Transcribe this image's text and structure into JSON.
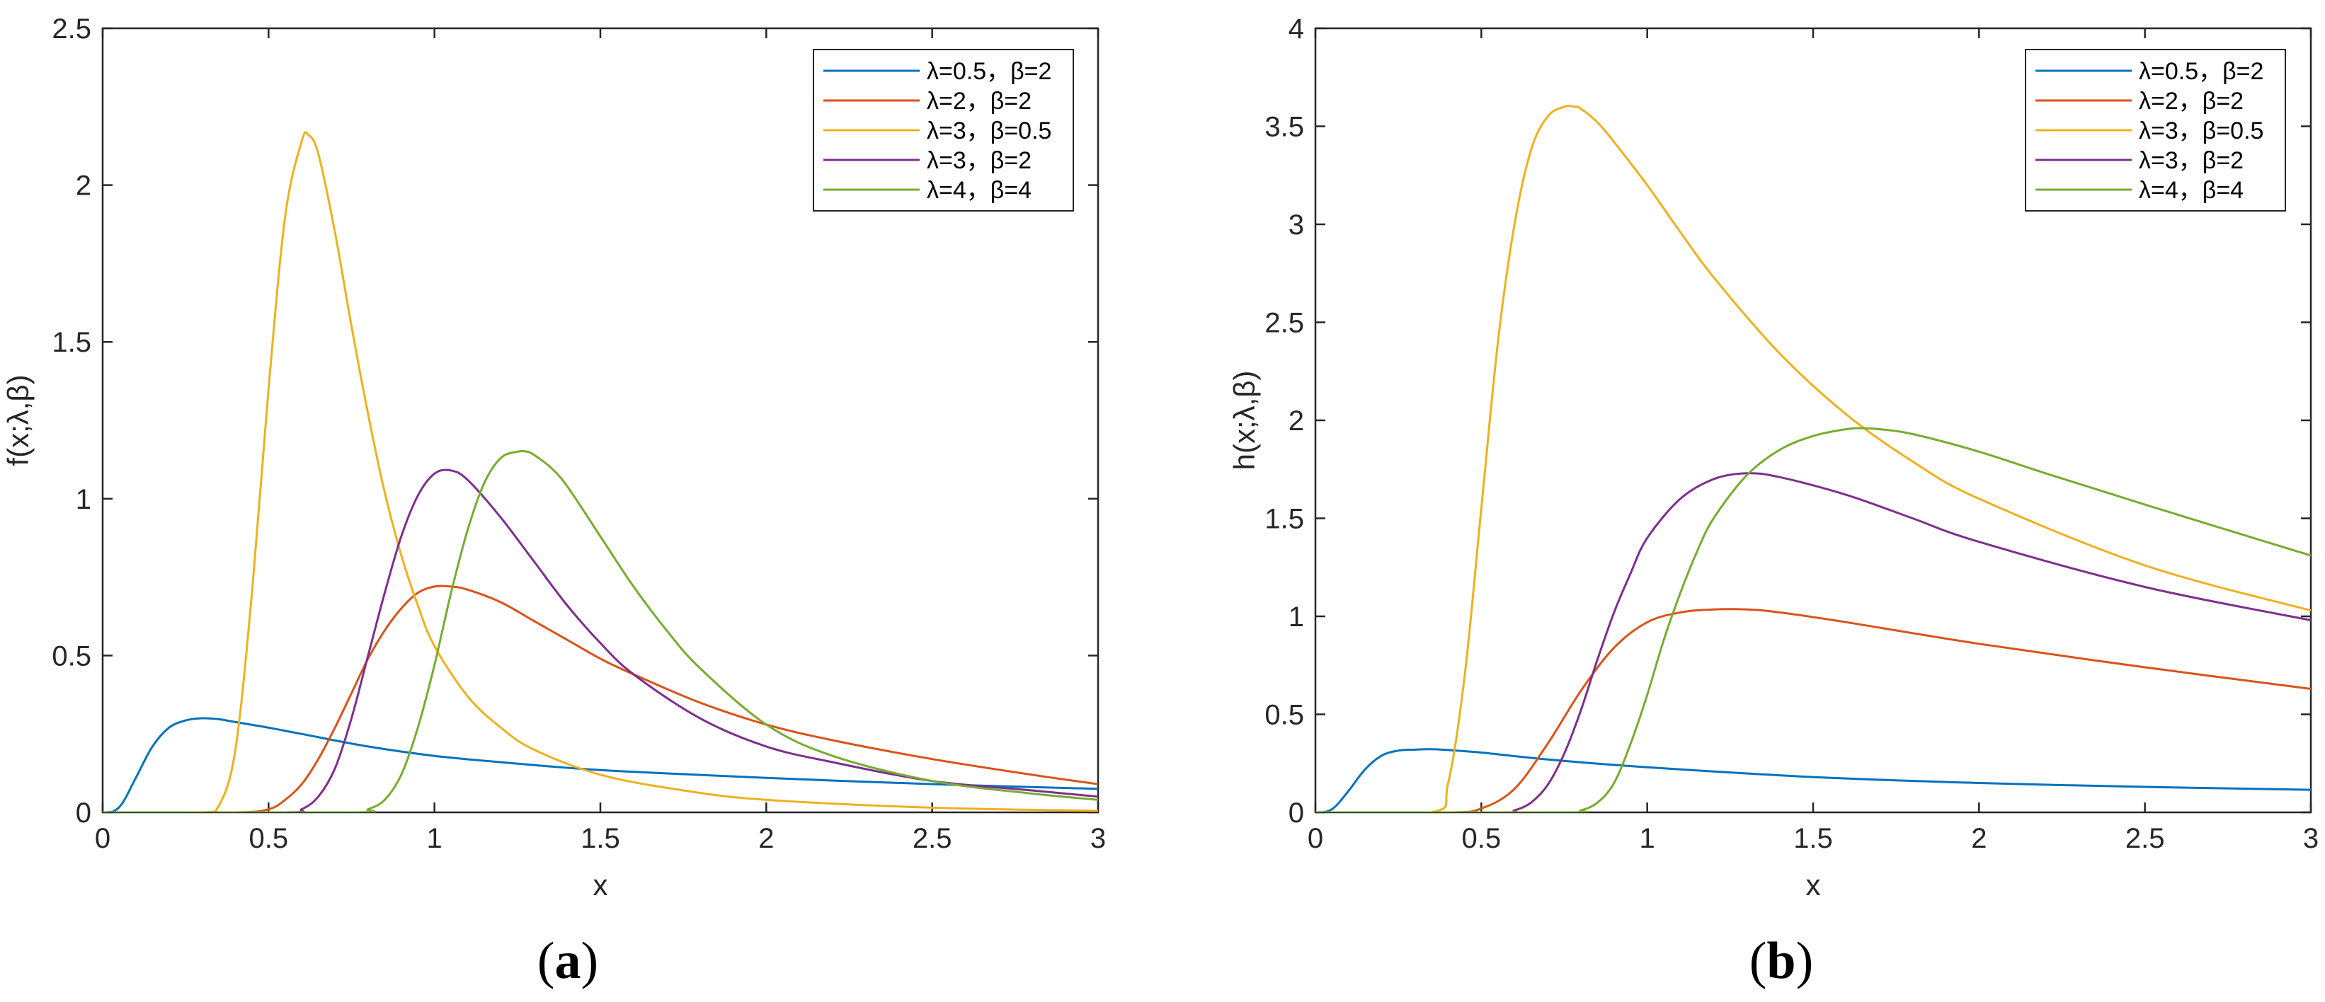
{
  "chart_data": [
    {
      "type": "line",
      "panel_label": "a",
      "xlabel": "x",
      "ylabel": "f(x;λ,β)",
      "xlim": [
        0,
        3
      ],
      "ylim": [
        0,
        2.5
      ],
      "xticks": [
        "0",
        "0.5",
        "1",
        "1.5",
        "2",
        "2.5",
        "3"
      ],
      "yticks": [
        "0",
        "0.5",
        "1",
        "1.5",
        "2",
        "2.5"
      ],
      "legend_position": "top-right",
      "grid": false,
      "series": [
        {
          "name": "λ=0.5，β=2",
          "color": "#0072BD",
          "x": [
            0,
            0.03,
            0.06,
            0.1,
            0.15,
            0.2,
            0.25,
            0.3,
            0.35,
            0.4,
            0.5,
            0.6,
            0.8,
            1.0,
            1.2,
            1.5,
            2.0,
            2.5,
            3.0
          ],
          "y": [
            0,
            0.002,
            0.03,
            0.11,
            0.21,
            0.27,
            0.293,
            0.3,
            0.297,
            0.288,
            0.27,
            0.25,
            0.21,
            0.18,
            0.16,
            0.135,
            0.11,
            0.09,
            0.075
          ]
        },
        {
          "name": "λ=2，β=2",
          "color": "#D95319",
          "x": [
            0,
            0.4,
            0.5,
            0.55,
            0.6,
            0.65,
            0.7,
            0.75,
            0.8,
            0.85,
            0.9,
            0.95,
            1.0,
            1.05,
            1.1,
            1.2,
            1.3,
            1.4,
            1.5,
            1.6,
            1.8,
            2.0,
            2.2,
            2.5,
            2.8,
            3.0
          ],
          "y": [
            0,
            0,
            0.01,
            0.04,
            0.09,
            0.17,
            0.27,
            0.38,
            0.49,
            0.58,
            0.65,
            0.7,
            0.72,
            0.72,
            0.71,
            0.67,
            0.61,
            0.55,
            0.49,
            0.44,
            0.35,
            0.28,
            0.23,
            0.17,
            0.12,
            0.09
          ]
        },
        {
          "name": "λ=3，β=0.5",
          "color": "#EDB120",
          "x": [
            0,
            0.3,
            0.35,
            0.4,
            0.45,
            0.5,
            0.55,
            0.6,
            0.62,
            0.65,
            0.7,
            0.75,
            0.8,
            0.85,
            0.9,
            0.95,
            1.0,
            1.1,
            1.2,
            1.3,
            1.5,
            1.75,
            2.0,
            2.5,
            3.0
          ],
          "y": [
            0,
            0,
            0.02,
            0.2,
            0.7,
            1.35,
            1.9,
            2.14,
            2.16,
            2.1,
            1.85,
            1.55,
            1.27,
            1.02,
            0.82,
            0.66,
            0.53,
            0.37,
            0.27,
            0.2,
            0.12,
            0.07,
            0.04,
            0.015,
            0.005
          ]
        },
        {
          "name": "λ=3，β=2",
          "color": "#7E2F8E",
          "x": [
            0,
            0.55,
            0.6,
            0.65,
            0.7,
            0.75,
            0.8,
            0.85,
            0.9,
            0.95,
            1.0,
            1.05,
            1.1,
            1.2,
            1.3,
            1.4,
            1.5,
            1.6,
            1.8,
            2.0,
            2.2,
            2.5,
            2.8,
            3.0
          ],
          "y": [
            0,
            0,
            0.01,
            0.05,
            0.14,
            0.3,
            0.5,
            0.7,
            0.88,
            1.01,
            1.08,
            1.09,
            1.06,
            0.94,
            0.8,
            0.66,
            0.54,
            0.44,
            0.3,
            0.21,
            0.16,
            0.1,
            0.07,
            0.05
          ]
        },
        {
          "name": "λ=4，β=4",
          "color": "#77AC30",
          "x": [
            0,
            0.75,
            0.8,
            0.85,
            0.9,
            0.95,
            1.0,
            1.05,
            1.1,
            1.15,
            1.2,
            1.25,
            1.28,
            1.3,
            1.35,
            1.4,
            1.5,
            1.6,
            1.7,
            1.8,
            2.0,
            2.2,
            2.5,
            2.8,
            3.0
          ],
          "y": [
            0,
            0,
            0.01,
            0.04,
            0.12,
            0.27,
            0.47,
            0.7,
            0.9,
            1.05,
            1.13,
            1.15,
            1.15,
            1.14,
            1.1,
            1.04,
            0.88,
            0.72,
            0.58,
            0.46,
            0.28,
            0.18,
            0.1,
            0.06,
            0.04
          ]
        }
      ]
    },
    {
      "type": "line",
      "panel_label": "b",
      "xlabel": "x",
      "ylabel": "h(x;λ,β)",
      "xlim": [
        0,
        3
      ],
      "ylim": [
        0,
        4
      ],
      "xticks": [
        "0",
        "0.5",
        "1",
        "1.5",
        "2",
        "2.5",
        "3"
      ],
      "yticks": [
        "0",
        "0.5",
        "1",
        "1.5",
        "2",
        "2.5",
        "3",
        "3.5",
        "4"
      ],
      "legend_position": "top-right",
      "grid": false,
      "series": [
        {
          "name": "λ=0.5，β=2",
          "color": "#0072BD",
          "x": [
            0,
            0.03,
            0.06,
            0.1,
            0.15,
            0.2,
            0.25,
            0.3,
            0.35,
            0.4,
            0.5,
            0.7,
            1.0,
            1.5,
            2.0,
            2.5,
            3.0
          ],
          "y": [
            0,
            0.002,
            0.03,
            0.11,
            0.22,
            0.29,
            0.315,
            0.32,
            0.322,
            0.318,
            0.305,
            0.27,
            0.23,
            0.18,
            0.15,
            0.13,
            0.115
          ]
        },
        {
          "name": "λ=2，β=2",
          "color": "#D95319",
          "x": [
            0,
            0.4,
            0.5,
            0.6,
            0.7,
            0.8,
            0.9,
            1.0,
            1.1,
            1.2,
            1.3,
            1.4,
            1.6,
            2.0,
            2.5,
            3.0
          ],
          "y": [
            0,
            0,
            0.02,
            0.12,
            0.35,
            0.62,
            0.84,
            0.97,
            1.02,
            1.035,
            1.035,
            1.02,
            0.97,
            0.86,
            0.74,
            0.63
          ]
        },
        {
          "name": "λ=3，β=0.5",
          "color": "#EDB120",
          "x": [
            0,
            0.35,
            0.4,
            0.45,
            0.5,
            0.55,
            0.6,
            0.65,
            0.7,
            0.75,
            0.78,
            0.8,
            0.85,
            0.9,
            1.0,
            1.1,
            1.2,
            1.4,
            1.6,
            1.8,
            2.0,
            2.5,
            3.0
          ],
          "y": [
            0,
            0,
            0.15,
            0.7,
            1.55,
            2.4,
            3.0,
            3.38,
            3.55,
            3.6,
            3.6,
            3.59,
            3.52,
            3.42,
            3.2,
            2.96,
            2.73,
            2.34,
            2.03,
            1.79,
            1.6,
            1.26,
            1.03
          ]
        },
        {
          "name": "λ=3，β=2",
          "color": "#7E2F8E",
          "x": [
            0,
            0.55,
            0.6,
            0.65,
            0.7,
            0.75,
            0.8,
            0.85,
            0.9,
            0.95,
            1.0,
            1.1,
            1.2,
            1.3,
            1.4,
            1.6,
            1.8,
            2.0,
            2.5,
            3.0
          ],
          "y": [
            0,
            0,
            0.01,
            0.05,
            0.14,
            0.3,
            0.52,
            0.78,
            1.02,
            1.22,
            1.4,
            1.6,
            1.7,
            1.73,
            1.71,
            1.62,
            1.5,
            1.38,
            1.15,
            0.98
          ]
        },
        {
          "name": "λ=4，β=4",
          "color": "#77AC30",
          "x": [
            0,
            0.75,
            0.8,
            0.85,
            0.9,
            0.95,
            1.0,
            1.05,
            1.1,
            1.15,
            1.2,
            1.3,
            1.4,
            1.5,
            1.6,
            1.65,
            1.7,
            1.8,
            2.0,
            2.2,
            2.5,
            3.0
          ],
          "y": [
            0,
            0,
            0.01,
            0.05,
            0.15,
            0.35,
            0.6,
            0.88,
            1.12,
            1.33,
            1.5,
            1.72,
            1.85,
            1.92,
            1.955,
            1.96,
            1.955,
            1.93,
            1.84,
            1.73,
            1.57,
            1.31
          ]
        }
      ]
    }
  ]
}
